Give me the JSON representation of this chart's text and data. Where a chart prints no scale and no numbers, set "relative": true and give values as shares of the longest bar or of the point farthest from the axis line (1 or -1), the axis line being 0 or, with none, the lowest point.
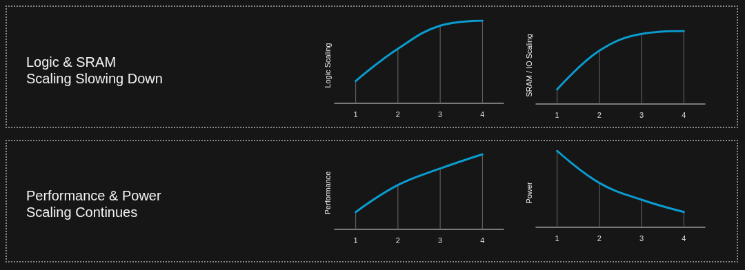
{
  "chart_data": [
    {
      "type": "other",
      "title": "Logic & SRAM Scaling Slowing Down"
    },
    {
      "type": "line",
      "ylabel": "Logic Scaling",
      "categories": [
        "1",
        "2",
        "3",
        "4"
      ],
      "relative": true,
      "marker": "none",
      "series": [
        {
          "type": "bar",
          "color": "#6a6a6a",
          "values": [
            0.27,
            0.66,
            0.94,
            1
          ]
        },
        {
          "color": "#0a9bcf",
          "values": [
            0.27,
            0.66,
            0.94,
            1
          ]
        }
      ]
    },
    {
      "type": "line",
      "ylabel": "SRAM / IO Scaling",
      "categories": [
        "1",
        "2",
        "3",
        "4"
      ],
      "relative": true,
      "marker": "none",
      "series": [
        {
          "type": "bar",
          "color": "#6a6a6a",
          "values": [
            0.2,
            0.73,
            0.96,
            1
          ]
        },
        {
          "color": "#0a9bcf",
          "values": [
            0.2,
            0.73,
            0.96,
            1
          ]
        }
      ]
    },
    {
      "type": "other",
      "title": "Performance & Power Scaling Continues"
    },
    {
      "type": "line",
      "ylabel": "Performance",
      "categories": [
        "1",
        "2",
        "3",
        "4"
      ],
      "relative": true,
      "marker": "none",
      "series": [
        {
          "type": "bar",
          "color": "#6a6a6a",
          "values": [
            0.23,
            0.59,
            0.81,
            1
          ]
        },
        {
          "color": "#0a9bcf",
          "values": [
            0.23,
            0.59,
            0.81,
            1
          ]
        }
      ]
    },
    {
      "type": "line",
      "ylabel": "Power",
      "categories": [
        "1",
        "2",
        "3",
        "4"
      ],
      "relative": true,
      "marker": "none",
      "series": [
        {
          "type": "bar",
          "color": "#6a6a6a",
          "values": [
            1,
            0.58,
            0.36,
            0.2
          ]
        },
        {
          "color": "#0a9bcf",
          "values": [
            1,
            0.58,
            0.36,
            0.2
          ]
        }
      ]
    }
  ]
}
